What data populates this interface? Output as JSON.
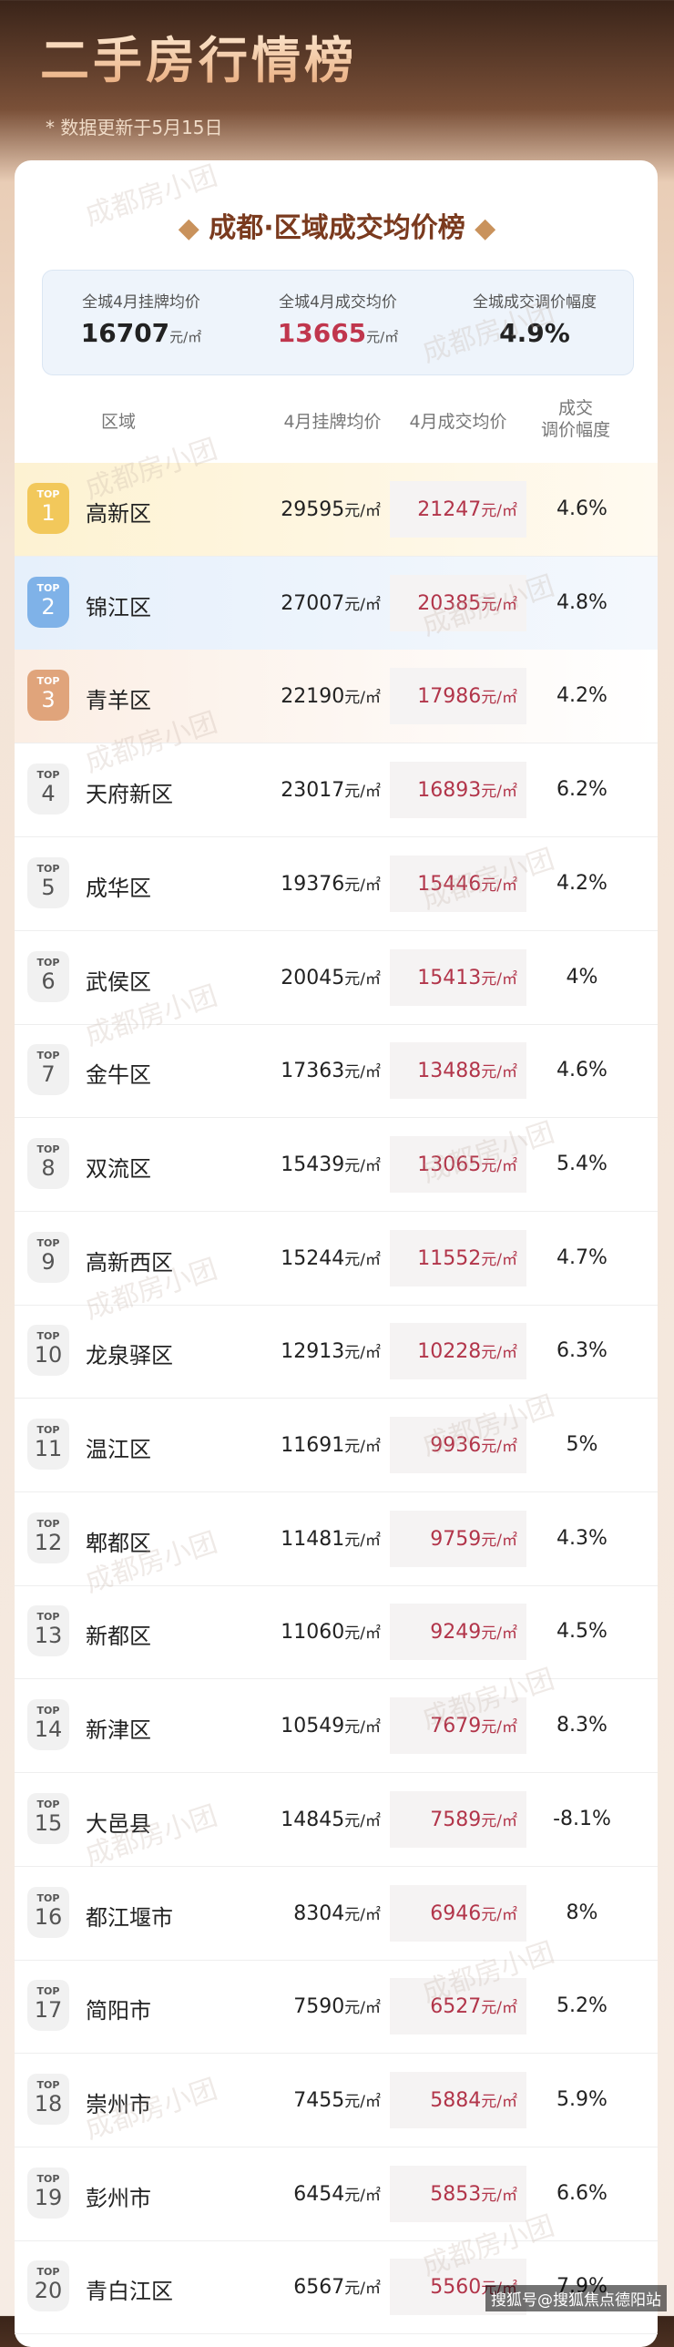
{
  "header": {
    "title": "二手房行情榜",
    "subtitle": "* 数据更新于5月15日"
  },
  "card_title": "成都·区域成交均价榜",
  "summary": [
    {
      "label": "全城4月挂牌均价",
      "value": 16707,
      "unit": "元/㎡"
    },
    {
      "label": "全城4月成交均价",
      "value": 13665,
      "unit": "元/㎡"
    },
    {
      "label": "全城成交调价幅度",
      "value": "4.9%"
    }
  ],
  "table": {
    "columns": [
      "区域",
      "4月挂牌均价",
      "4月成交均价",
      [
        "成交",
        "调价幅度"
      ]
    ],
    "badge": "TOP",
    "unit": "元/㎡",
    "rows": [
      [
        "1",
        "高新区",
        29595,
        21247,
        "4.6%"
      ],
      [
        "2",
        "锦江区",
        27007,
        20385,
        "4.8%"
      ],
      [
        "3",
        "青羊区",
        22190,
        17986,
        "4.2%"
      ],
      [
        "4",
        "天府新区",
        23017,
        16893,
        "6.2%"
      ],
      [
        "5",
        "成华区",
        19376,
        15446,
        "4.2%"
      ],
      [
        "6",
        "武侯区",
        20045,
        15413,
        "4%"
      ],
      [
        "7",
        "金牛区",
        17363,
        13488,
        "4.6%"
      ],
      [
        "8",
        "双流区",
        15439,
        13065,
        "5.4%"
      ],
      [
        "9",
        "高新西区",
        15244,
        11552,
        "4.7%"
      ],
      [
        "10",
        "龙泉驿区",
        12913,
        10228,
        "6.3%"
      ],
      [
        "11",
        "温江区",
        11691,
        9936,
        "5%"
      ],
      [
        "12",
        "郫都区",
        11481,
        9759,
        "4.3%"
      ],
      [
        "13",
        "新都区",
        11060,
        9249,
        "4.5%"
      ],
      [
        "14",
        "新津区",
        10549,
        7679,
        "8.3%"
      ],
      [
        "15",
        "大邑县",
        14845,
        7589,
        "-8.1%"
      ],
      [
        "16",
        "都江堰市",
        8304,
        6946,
        "8%"
      ],
      [
        "17",
        "简阳市",
        7590,
        6527,
        "5.2%"
      ],
      [
        "18",
        "崇州市",
        7455,
        5884,
        "5.9%"
      ],
      [
        "19",
        "彭州市",
        6454,
        5853,
        "6.6%"
      ],
      [
        "20",
        "青白江区",
        6567,
        5560,
        "7.9%"
      ]
    ]
  },
  "watermark": "成都房小团",
  "source": "搜狐号@搜狐焦点德阳站"
}
